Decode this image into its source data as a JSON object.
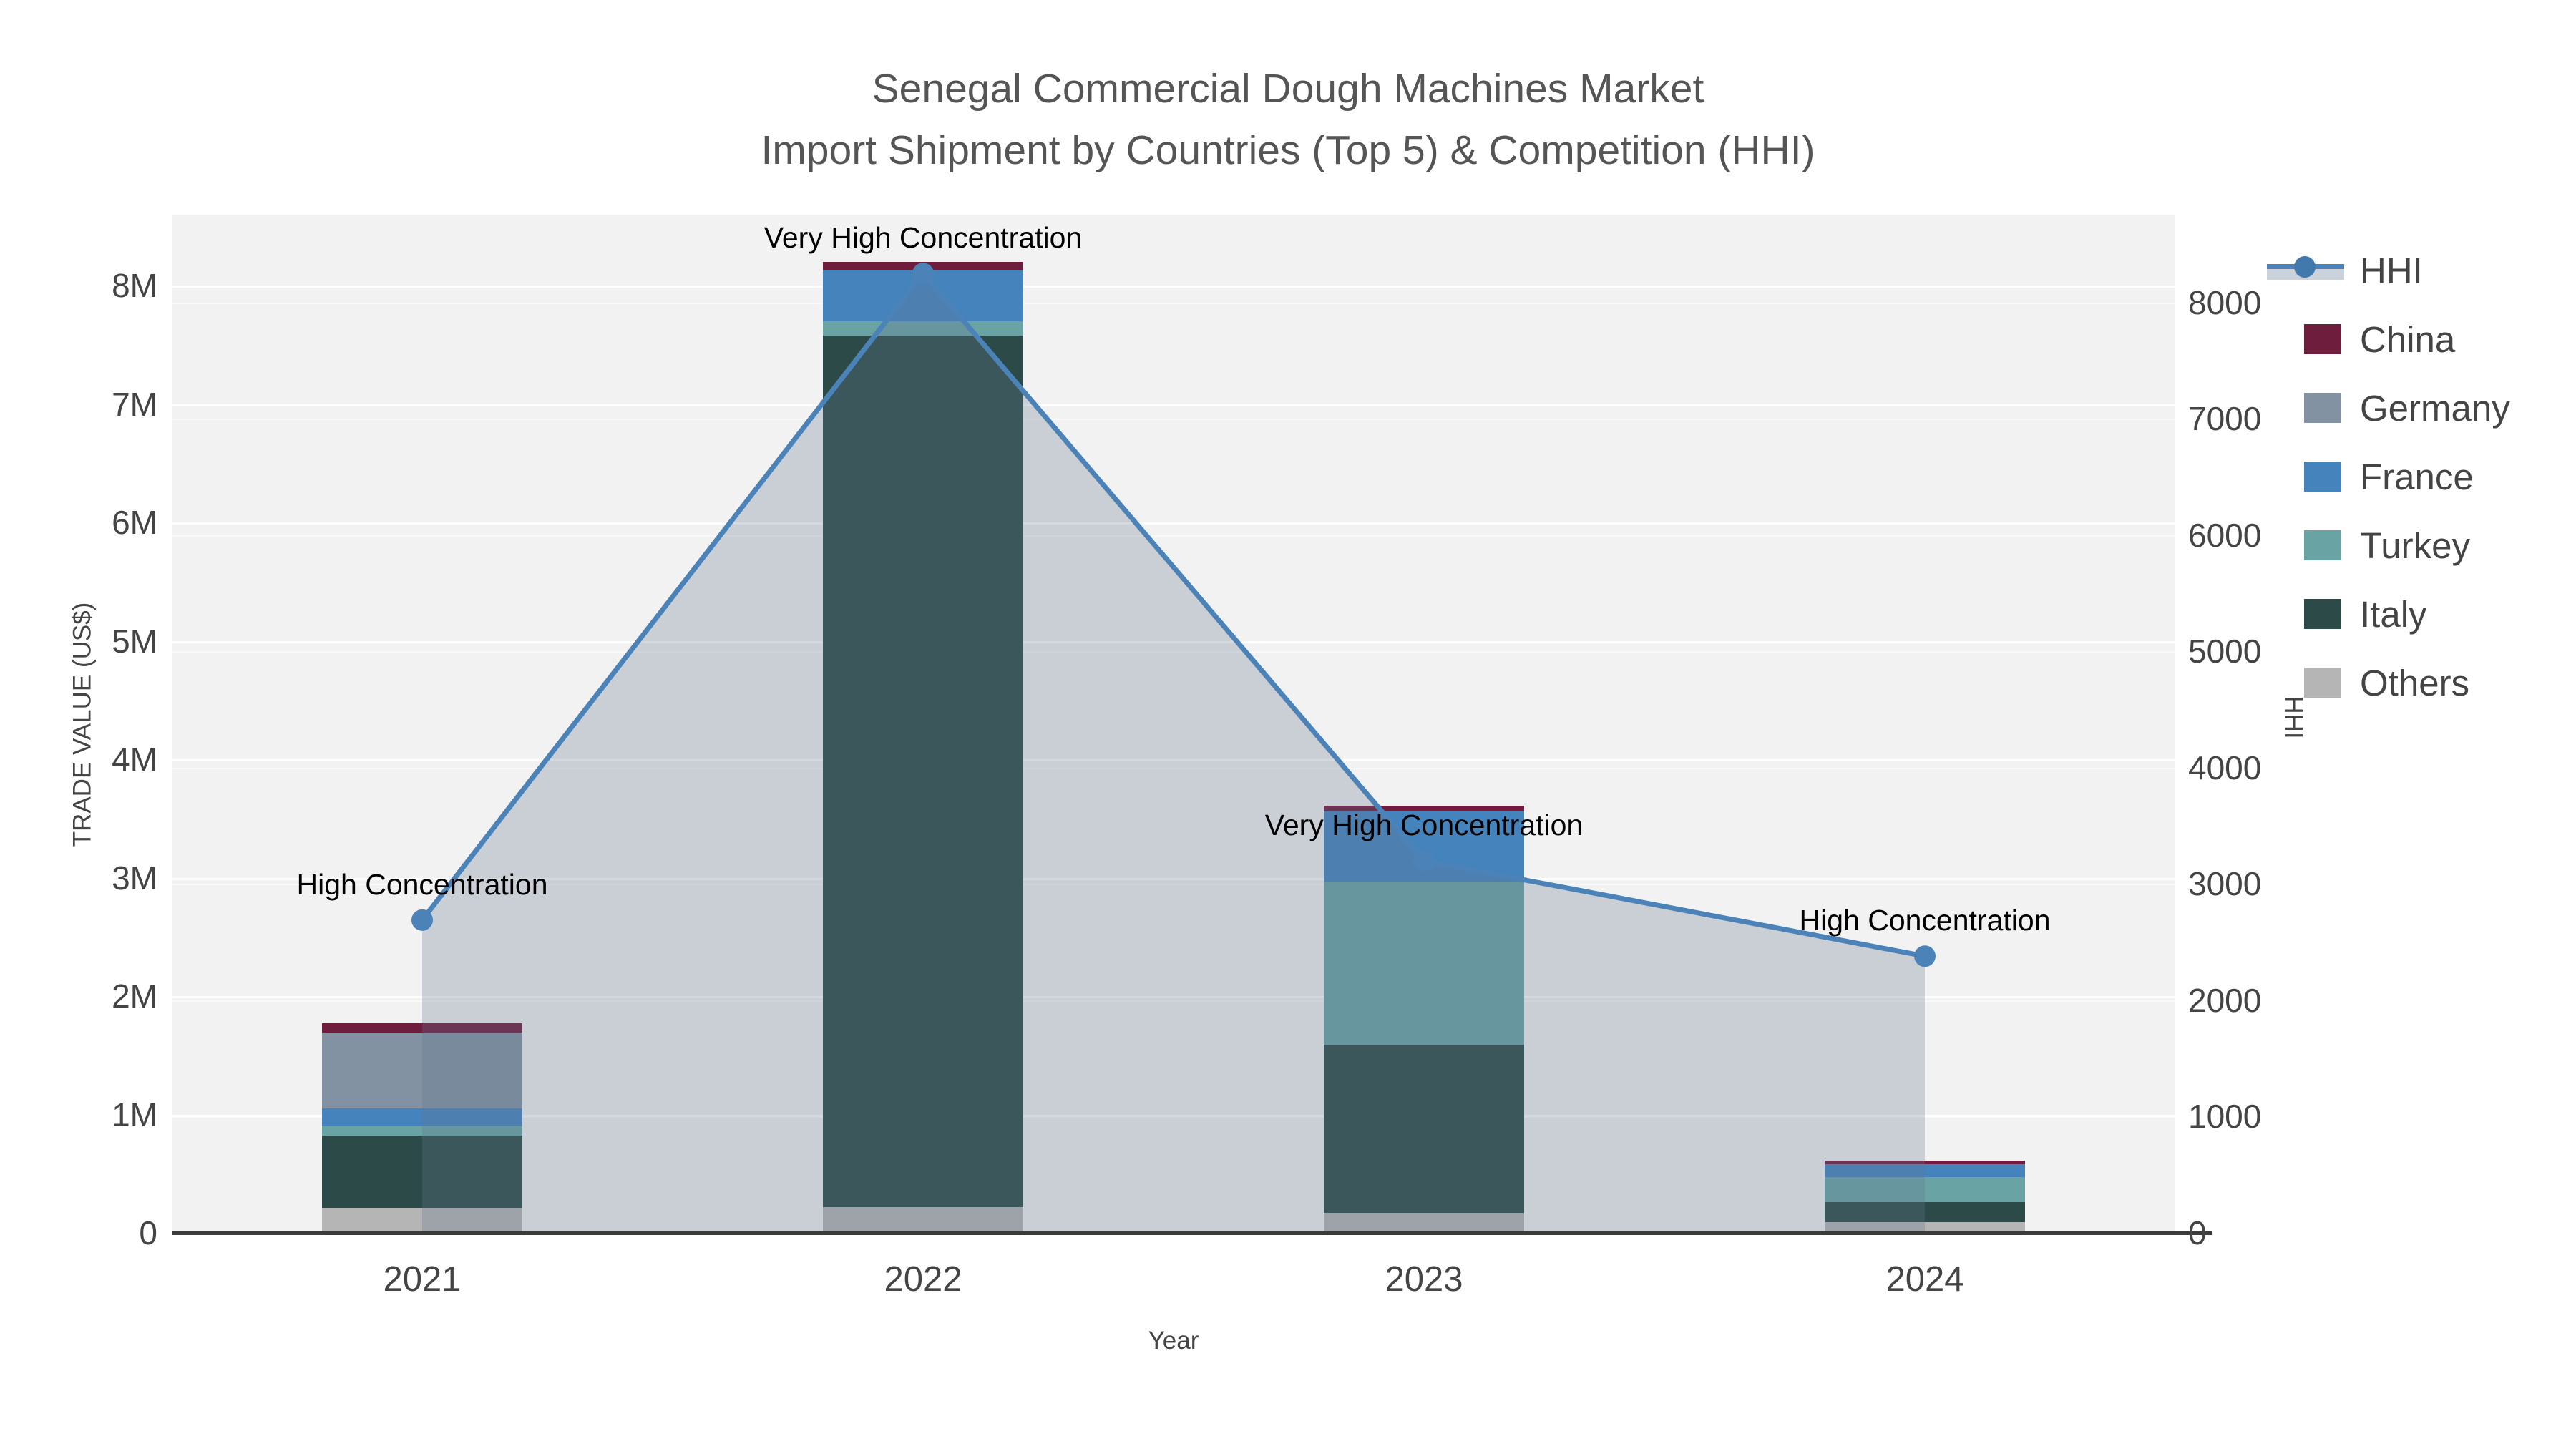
{
  "title": {
    "line1": "Senegal Commercial Dough Machines Market",
    "line2": "Import Shipment by Countries (Top 5) & Competition (HHI)"
  },
  "chart_data": {
    "type": "combo-stacked-bar-with-line-area",
    "categories": [
      "2021",
      "2022",
      "2023",
      "2024"
    ],
    "bar_series_stack_bottom_to_top": [
      {
        "name": "Others",
        "color": "#b5b5b5",
        "values_musd": [
          0.21,
          0.22,
          0.17,
          0.09
        ]
      },
      {
        "name": "Italy",
        "color": "#2c4b48",
        "values_musd": [
          0.61,
          7.36,
          1.42,
          0.17
        ]
      },
      {
        "name": "Turkey",
        "color": "#69a3a4",
        "values_musd": [
          0.08,
          0.12,
          1.38,
          0.21
        ]
      },
      {
        "name": "France",
        "color": "#4583bd",
        "values_musd": [
          0.15,
          0.43,
          0.59,
          0.11
        ]
      },
      {
        "name": "Germany",
        "color": "#8292a3",
        "values_musd": [
          0.64,
          0.0,
          0.0,
          0.0
        ]
      },
      {
        "name": "China",
        "color": "#6e1e3c",
        "values_musd": [
          0.08,
          0.07,
          0.05,
          0.03
        ]
      }
    ],
    "line_series": {
      "name": "HHI",
      "color": "#4b83b8",
      "area_fill": "rgba(100,118,145,0.28)",
      "values": [
        2690,
        8250,
        3200,
        2380
      ]
    },
    "annotations": [
      {
        "category": "2021",
        "text": "High Concentration"
      },
      {
        "category": "2022",
        "text": "Very High Concentration"
      },
      {
        "category": "2023",
        "text": "Very High Concentration"
      },
      {
        "category": "2024",
        "text": "High Concentration"
      }
    ],
    "y_left_axis": {
      "title": "TRADE VALUE (US$)",
      "tick_labels": [
        "0",
        "1M",
        "2M",
        "3M",
        "4M",
        "5M",
        "6M",
        "7M",
        "8M"
      ],
      "tick_values_musd": [
        0,
        1,
        2,
        3,
        4,
        5,
        6,
        7,
        8
      ],
      "range_musd": [
        0,
        8.6
      ],
      "grid": true
    },
    "y_right_axis": {
      "title": "HHI",
      "tick_labels": [
        "0",
        "1000",
        "2000",
        "3000",
        "4000",
        "5000",
        "6000",
        "7000",
        "8000"
      ],
      "tick_values": [
        0,
        1000,
        2000,
        3000,
        4000,
        5000,
        6000,
        7000,
        8000
      ],
      "range": [
        0,
        8756
      ],
      "grid": true
    },
    "x_axis": {
      "title": "Year"
    },
    "legend": {
      "position": "right",
      "entries": [
        "HHI",
        "China",
        "Germany",
        "France",
        "Turkey",
        "Italy",
        "Others"
      ]
    }
  }
}
